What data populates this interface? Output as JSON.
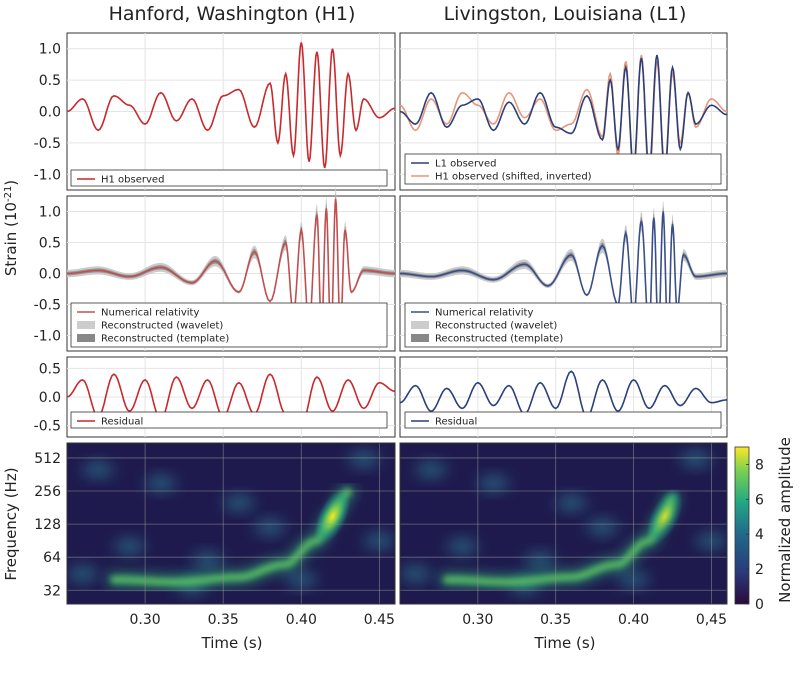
{
  "column_titles": [
    "Hanford, Washington (H1)",
    "Livingston, Louisiana (L1)"
  ],
  "ylabel_strain": "Strain (10",
  "ylabel_strain_exp": "-21",
  "ylabel_strain_close": ")",
  "ylabel_freq": "Frequency (Hz)",
  "xlabel": "Time (s)",
  "colorbar_label": "Normalized amplitude",
  "colors": {
    "h1": "#c8292c",
    "l1": "#2b3f7a",
    "h1_shifted": "#e8967a",
    "nr_h1": "#c05050",
    "nr_l1": "#3a4f8a",
    "wavelet": "#cccccc",
    "template": "#888888"
  },
  "chart_data": [
    {
      "type": "line",
      "panel": "H1 observed",
      "ylim": [
        -1.25,
        1.25
      ],
      "yticks": [
        "1.0",
        "0.5",
        "0.0",
        "-0.5",
        "-1.0"
      ],
      "legend": [
        "H1 observed"
      ],
      "series": [
        {
          "name": "H1 observed",
          "color": "#c8292c",
          "x": [
            0.25,
            0.26,
            0.27,
            0.28,
            0.29,
            0.3,
            0.31,
            0.32,
            0.33,
            0.34,
            0.35,
            0.36,
            0.37,
            0.38,
            0.385,
            0.39,
            0.395,
            0.4,
            0.405,
            0.41,
            0.415,
            0.42,
            0.425,
            0.43,
            0.435,
            0.44,
            0.45,
            0.46
          ],
          "y": [
            0.0,
            0.2,
            -0.3,
            0.25,
            0.1,
            -0.2,
            0.3,
            -0.15,
            0.2,
            -0.3,
            0.25,
            0.35,
            -0.25,
            0.45,
            -0.5,
            0.6,
            -0.7,
            1.1,
            -0.8,
            0.95,
            -0.9,
            1.0,
            -0.7,
            0.6,
            -0.3,
            0.2,
            -0.1,
            0.05
          ]
        }
      ]
    },
    {
      "type": "line",
      "panel": "L1 observed",
      "ylim": [
        -1.25,
        1.25
      ],
      "legend": [
        "L1 observed",
        "H1 observed (shifted, inverted)"
      ],
      "series": [
        {
          "name": "L1 observed",
          "color": "#2b3f7a",
          "x": [
            0.25,
            0.26,
            0.27,
            0.28,
            0.29,
            0.3,
            0.31,
            0.32,
            0.33,
            0.34,
            0.35,
            0.36,
            0.37,
            0.38,
            0.385,
            0.39,
            0.395,
            0.4,
            0.405,
            0.41,
            0.415,
            0.42,
            0.425,
            0.43,
            0.435,
            0.44,
            0.45,
            0.46
          ],
          "y": [
            0.0,
            -0.2,
            0.3,
            -0.25,
            0.1,
            0.2,
            -0.3,
            0.15,
            -0.2,
            0.3,
            -0.25,
            -0.35,
            0.25,
            -0.45,
            0.5,
            -0.6,
            0.7,
            -0.9,
            0.85,
            -0.95,
            0.9,
            -1.0,
            0.7,
            -0.6,
            0.3,
            -0.2,
            0.1,
            -0.05
          ]
        },
        {
          "name": "H1 observed (shifted, inverted)",
          "color": "#e8967a",
          "x": [
            0.25,
            0.26,
            0.27,
            0.28,
            0.29,
            0.3,
            0.31,
            0.32,
            0.33,
            0.34,
            0.35,
            0.36,
            0.37,
            0.38,
            0.385,
            0.39,
            0.395,
            0.4,
            0.405,
            0.41,
            0.415,
            0.42,
            0.425,
            0.43,
            0.435,
            0.44,
            0.45,
            0.46
          ],
          "y": [
            0.1,
            -0.3,
            0.2,
            -0.2,
            0.3,
            0.1,
            -0.2,
            0.3,
            -0.1,
            0.2,
            -0.3,
            -0.2,
            0.35,
            -0.4,
            0.6,
            -0.7,
            0.8,
            -1.05,
            0.9,
            -1.1,
            0.8,
            -0.85,
            0.6,
            -0.5,
            0.3,
            -0.25,
            0.2,
            0.0
          ]
        }
      ]
    },
    {
      "type": "line",
      "panel": "H1 reconstruction",
      "ylim": [
        -1.25,
        1.25
      ],
      "yticks": [
        "1.0",
        "0.5",
        "0.0",
        "-0.5",
        "-1.0"
      ],
      "legend": [
        "Numerical relativity",
        "Reconstructed (wavelet)",
        "Reconstructed (template)"
      ],
      "series": [
        {
          "name": "Numerical relativity",
          "color": "#c05050",
          "x": [
            0.25,
            0.27,
            0.29,
            0.31,
            0.33,
            0.345,
            0.36,
            0.37,
            0.38,
            0.39,
            0.395,
            0.4,
            0.405,
            0.41,
            0.413,
            0.416,
            0.419,
            0.422,
            0.425,
            0.428,
            0.432,
            0.44,
            0.46
          ],
          "y": [
            0.0,
            0.05,
            -0.05,
            0.1,
            -0.15,
            0.2,
            -0.3,
            0.35,
            -0.45,
            0.5,
            -0.65,
            0.7,
            -0.85,
            0.95,
            -0.9,
            1.05,
            -1.1,
            1.2,
            -0.95,
            0.7,
            -0.3,
            0.05,
            0.0
          ]
        }
      ]
    },
    {
      "type": "line",
      "panel": "L1 reconstruction",
      "ylim": [
        -1.25,
        1.25
      ],
      "legend": [
        "Numerical relativity",
        "Reconstructed (wavelet)",
        "Reconstructed (template)"
      ],
      "series": [
        {
          "name": "Numerical relativity",
          "color": "#3a4f8a",
          "x": [
            0.25,
            0.27,
            0.29,
            0.31,
            0.33,
            0.345,
            0.36,
            0.37,
            0.38,
            0.39,
            0.395,
            0.4,
            0.405,
            0.41,
            0.413,
            0.416,
            0.419,
            0.422,
            0.425,
            0.428,
            0.432,
            0.44,
            0.46
          ],
          "y": [
            0.0,
            -0.05,
            0.05,
            -0.1,
            0.15,
            -0.2,
            0.3,
            -0.35,
            0.45,
            -0.5,
            0.65,
            -0.7,
            0.85,
            -0.95,
            0.9,
            -1.0,
            1.0,
            -1.05,
            0.8,
            -0.6,
            0.3,
            -0.05,
            0.0
          ]
        }
      ]
    },
    {
      "type": "line",
      "panel": "H1 residual",
      "ylim": [
        -0.7,
        0.7
      ],
      "yticks": [
        "0.5",
        "0.0",
        "-0.5"
      ],
      "legend": [
        "Residual"
      ],
      "series": [
        {
          "name": "Residual",
          "color": "#c8292c",
          "x": [
            0.25,
            0.26,
            0.27,
            0.28,
            0.29,
            0.3,
            0.31,
            0.32,
            0.33,
            0.34,
            0.35,
            0.36,
            0.37,
            0.38,
            0.39,
            0.4,
            0.41,
            0.42,
            0.43,
            0.44,
            0.45,
            0.46
          ],
          "y": [
            0.0,
            0.3,
            -0.35,
            0.4,
            -0.25,
            0.3,
            -0.4,
            0.35,
            -0.2,
            0.3,
            -0.35,
            0.25,
            -0.3,
            0.4,
            -0.3,
            -0.5,
            0.35,
            -0.25,
            0.3,
            -0.2,
            0.25,
            0.1
          ]
        }
      ]
    },
    {
      "type": "line",
      "panel": "L1 residual",
      "ylim": [
        -0.7,
        0.7
      ],
      "legend": [
        "Residual"
      ],
      "series": [
        {
          "name": "Residual",
          "color": "#2b3f7a",
          "x": [
            0.25,
            0.26,
            0.27,
            0.28,
            0.29,
            0.3,
            0.31,
            0.32,
            0.33,
            0.34,
            0.35,
            0.36,
            0.37,
            0.38,
            0.39,
            0.4,
            0.41,
            0.42,
            0.43,
            0.44,
            0.45,
            0.46
          ],
          "y": [
            -0.1,
            0.2,
            -0.25,
            0.15,
            -0.2,
            0.25,
            -0.15,
            0.2,
            -0.3,
            0.25,
            -0.2,
            0.45,
            -0.35,
            0.3,
            -0.25,
            0.3,
            -0.2,
            0.2,
            -0.15,
            0.15,
            -0.1,
            -0.05
          ]
        }
      ]
    },
    {
      "type": "heatmap",
      "panel": "H1 spectrogram",
      "ylabel": "Frequency (Hz)",
      "yticks": [
        "512",
        "256",
        "128",
        "64",
        "32"
      ],
      "xlabel": "Time (s)",
      "xticks": [
        "0.30",
        "0.35",
        "0.40",
        "0.45"
      ],
      "colorbar": {
        "label": "Normalized amplitude",
        "range": [
          0,
          9
        ],
        "ticks": [
          "8",
          "6",
          "4",
          "2",
          "0"
        ]
      },
      "chirp": {
        "t": [
          0.28,
          0.32,
          0.36,
          0.39,
          0.41,
          0.42,
          0.43
        ],
        "f": [
          40,
          38,
          42,
          55,
          90,
          150,
          250
        ]
      }
    },
    {
      "type": "heatmap",
      "panel": "L1 spectrogram",
      "xlabel": "Time (s)",
      "xticks": [
        "0.30",
        "0.35",
        "0.40",
        "0,45"
      ],
      "chirp": {
        "t": [
          0.28,
          0.32,
          0.36,
          0.39,
          0.41,
          0.42,
          0.425
        ],
        "f": [
          40,
          38,
          42,
          55,
          90,
          150,
          220
        ]
      }
    }
  ]
}
